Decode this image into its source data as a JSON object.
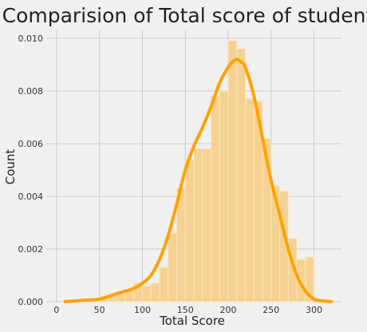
{
  "chart_data": {
    "type": "bar",
    "title": "Comparision of Total score of students",
    "xlabel": "Total Score",
    "ylabel": "Count",
    "xlim": [
      -12,
      332
    ],
    "ylim": [
      0,
      0.0103
    ],
    "xticks": [
      "0",
      "50",
      "100",
      "150",
      "200",
      "250",
      "300"
    ],
    "yticks": [
      "0.000",
      "0.002",
      "0.004",
      "0.006",
      "0.008",
      "0.010"
    ],
    "grid": true,
    "bin_width": 10,
    "histogram": {
      "bin_edges": [
        30,
        40,
        50,
        60,
        70,
        80,
        90,
        100,
        110,
        120,
        130,
        140,
        150,
        160,
        170,
        180,
        190,
        200,
        210,
        220,
        230,
        240,
        250,
        260,
        270,
        280,
        290,
        300
      ],
      "values": [
        0.0001,
        0.0001,
        0.0002,
        0.0002,
        0.0003,
        0.0004,
        0.0007,
        0.0006,
        0.0007,
        0.0013,
        0.0026,
        0.0043,
        0.0054,
        0.0058,
        0.0058,
        0.0078,
        0.008,
        0.0099,
        0.0096,
        0.0077,
        0.0076,
        0.0062,
        0.0044,
        0.0042,
        0.0024,
        0.0016,
        0.0017
      ]
    },
    "kde": {
      "x": [
        10,
        30,
        50,
        70,
        80,
        90,
        100,
        110,
        120,
        130,
        140,
        150,
        160,
        170,
        180,
        190,
        200,
        205,
        210,
        215,
        220,
        230,
        240,
        250,
        260,
        270,
        280,
        290,
        300,
        310,
        320
      ],
      "y": [
        0.0,
        5e-05,
        0.0001,
        0.0003,
        0.0004,
        0.0005,
        0.0007,
        0.001,
        0.0016,
        0.0025,
        0.0037,
        0.005,
        0.0059,
        0.0066,
        0.0074,
        0.0083,
        0.0089,
        0.0091,
        0.0092,
        0.0091,
        0.0089,
        0.0078,
        0.0062,
        0.0046,
        0.0033,
        0.002,
        0.001,
        0.0004,
        0.0001,
        3e-05,
        0.0
      ]
    },
    "colors": {
      "bars": "#f6d292",
      "bar_edge": "#fbe6bd",
      "kde": "#ffa200",
      "background": "#f0f0f0",
      "grid": "#cbcbcb"
    }
  }
}
